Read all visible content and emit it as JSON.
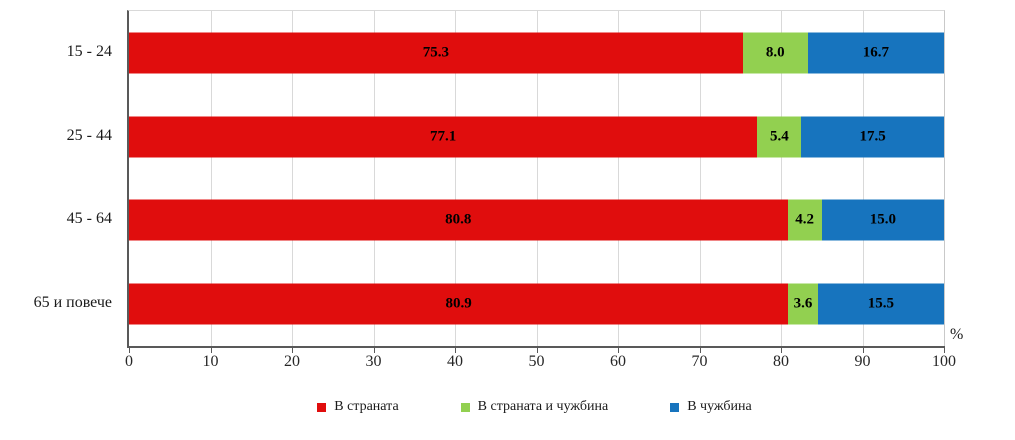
{
  "chart_data": {
    "type": "bar",
    "orientation": "horizontal",
    "stacked": true,
    "title": "",
    "xlabel": "%",
    "ylabel": "",
    "xlim": [
      0,
      100
    ],
    "x_ticks": [
      0,
      10,
      20,
      30,
      40,
      50,
      60,
      70,
      80,
      90,
      100
    ],
    "grid": true,
    "legend_position": "bottom",
    "categories": [
      "15 - 24",
      "25 - 44",
      "45 - 64",
      "65 и повече"
    ],
    "series": [
      {
        "name": "В страната",
        "color": "#e00d0d",
        "values": [
          75.3,
          77.1,
          80.8,
          80.9
        ]
      },
      {
        "name": "В страната и чужбина",
        "color": "#92d050",
        "values": [
          8.0,
          5.4,
          4.2,
          3.6
        ]
      },
      {
        "name": "В чужбина",
        "color": "#1774be",
        "values": [
          16.7,
          17.5,
          15.0,
          15.5
        ]
      }
    ]
  }
}
